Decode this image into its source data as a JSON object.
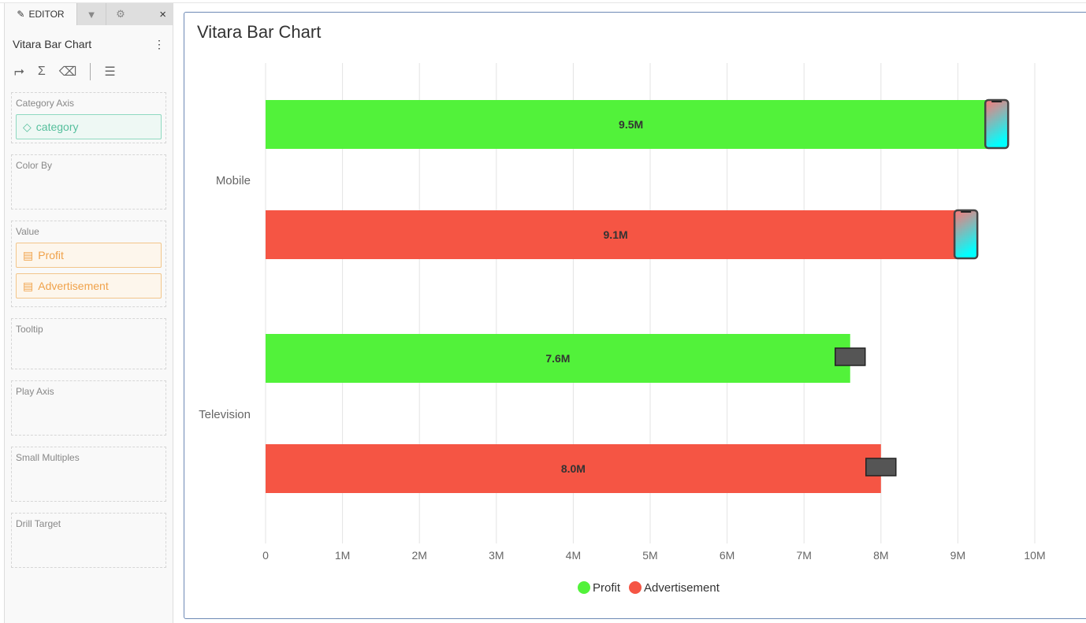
{
  "panel": {
    "tab_editor": "EDITOR",
    "close": "×",
    "title": "Vitara Bar Chart",
    "more": "⋮",
    "sections": [
      {
        "label": "Category Axis",
        "pills": [
          {
            "text": "category",
            "kind": "cat"
          }
        ]
      },
      {
        "label": "Color By",
        "pills": []
      },
      {
        "label": "Value",
        "pills": [
          {
            "text": "Profit",
            "kind": "val"
          },
          {
            "text": "Advertisement",
            "kind": "val"
          }
        ]
      },
      {
        "label": "Tooltip",
        "pills": []
      },
      {
        "label": "Play Axis",
        "pills": []
      },
      {
        "label": "Small Multiples",
        "pills": []
      },
      {
        "label": "Drill Target",
        "pills": []
      }
    ]
  },
  "chart_data": {
    "type": "bar",
    "orientation": "horizontal",
    "title": "Vitara Bar Chart",
    "categories": [
      "Mobile",
      "Television"
    ],
    "series": [
      {
        "name": "Profit",
        "color": "#52f23a",
        "values": [
          9.5,
          7.6
        ],
        "labels": [
          "9.5M",
          "7.6M"
        ]
      },
      {
        "name": "Advertisement",
        "color": "#f55544",
        "values": [
          9.1,
          8.0
        ],
        "labels": [
          "9.1M",
          "8.0M"
        ]
      }
    ],
    "xlim": [
      0,
      10
    ],
    "ticks": [
      "0",
      "1M",
      "2M",
      "3M",
      "4M",
      "5M",
      "6M",
      "7M",
      "8M",
      "9M",
      "10M"
    ],
    "grid": true,
    "legend": "bottom-center",
    "markers": [
      "phone-icon",
      "tv-icon"
    ]
  }
}
